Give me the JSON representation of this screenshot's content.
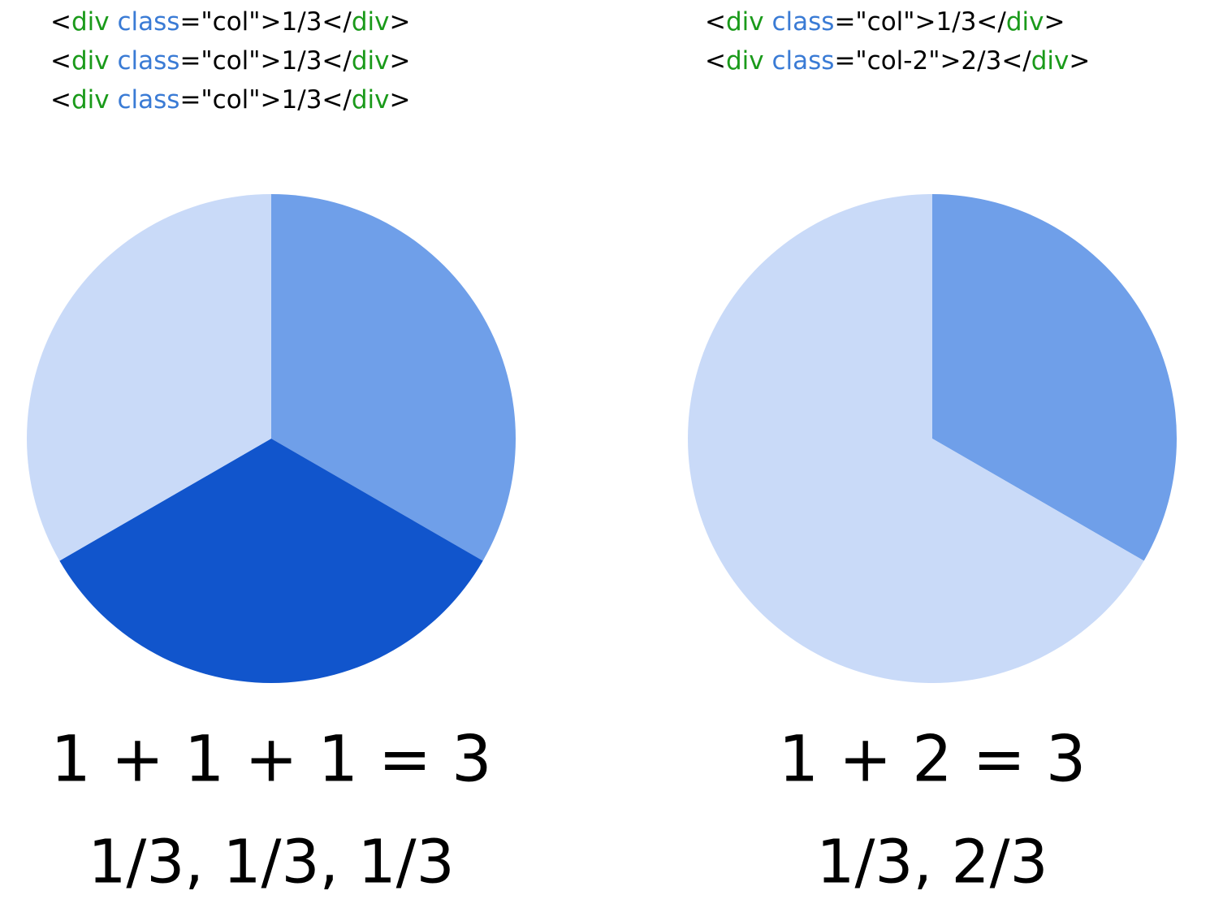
{
  "chart_data": [
    {
      "type": "pie",
      "code": [
        [
          "<",
          "div",
          " class",
          "=\"col\">1/3</",
          "div",
          ">"
        ],
        [
          "<",
          "div",
          " class",
          "=\"col\">1/3</",
          "div",
          ">"
        ],
        [
          "<",
          "div",
          " class",
          "=\"col\">1/3</",
          "div",
          ">"
        ]
      ],
      "token_colors": [
        "#000000",
        "#1a9a1a",
        "#3a7bd5",
        "#000000",
        "#1a9a1a",
        "#000000"
      ],
      "values": [
        1,
        1,
        1
      ],
      "colors": [
        "#6f9fe9",
        "#1155cc",
        "#c9daf8"
      ],
      "equation": "1 + 1 + 1 = 3",
      "fractions": "1/3, 1/3, 1/3"
    },
    {
      "type": "pie",
      "code": [
        [
          "<",
          "div",
          " class",
          "=\"col\">1/3</",
          "div",
          ">"
        ],
        [
          "<",
          "div",
          " class",
          "=\"col-2\">2/3</",
          "div",
          ">"
        ]
      ],
      "token_colors": [
        "#000000",
        "#1a9a1a",
        "#3a7bd5",
        "#000000",
        "#1a9a1a",
        "#000000"
      ],
      "values": [
        1,
        2
      ],
      "colors": [
        "#6f9fe9",
        "#c9daf8"
      ],
      "equation": "1 + 2 = 3",
      "fractions": "1/3, 2/3"
    }
  ]
}
